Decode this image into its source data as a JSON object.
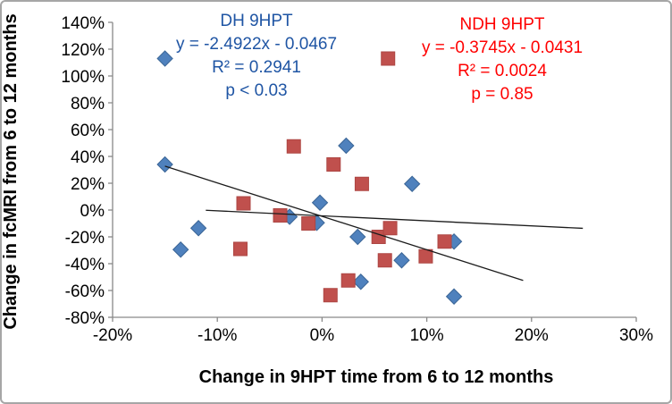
{
  "chart_data": {
    "type": "scatter",
    "title": "",
    "xlabel": "Change in 9HPT time from 6 to 12 months",
    "ylabel": "Change in fcMRI from 6 to 12 months",
    "xlim": [
      -20,
      30
    ],
    "ylim": [
      -80,
      140
    ],
    "grid": false,
    "legend_position": "inline-text-annotations",
    "x_ticks": [
      -20,
      -10,
      0,
      10,
      20,
      30
    ],
    "x_tick_labels": [
      "-20%",
      "-10%",
      "0%",
      "10%",
      "20%",
      "30%"
    ],
    "y_ticks": [
      -80,
      -60,
      -40,
      -20,
      0,
      20,
      40,
      60,
      80,
      100,
      120,
      140
    ],
    "y_tick_labels": [
      "-80%",
      "-60%",
      "-40%",
      "-20%",
      "0%",
      "20%",
      "40%",
      "60%",
      "80%",
      "100%",
      "120%",
      "140%"
    ],
    "series": [
      {
        "name": "DH 9HPT",
        "marker": "diamond",
        "color": "#4F81BD",
        "edge_color": "#3A6596",
        "points_pct": [
          [
            -15,
            113
          ],
          [
            -15,
            34
          ],
          [
            -13.5,
            -29.5
          ],
          [
            -11.8,
            -13.5
          ],
          [
            -3.1,
            -5
          ],
          [
            -0.5,
            -9.5
          ],
          [
            -0.2,
            5.5
          ],
          [
            2.3,
            48
          ],
          [
            8.6,
            19.5
          ],
          [
            3.4,
            -20
          ],
          [
            7.6,
            -37.5
          ],
          [
            12.6,
            -23.5
          ],
          [
            3.7,
            -53.5
          ],
          [
            12.6,
            -64.5
          ]
        ]
      },
      {
        "name": "NDH 9HPT",
        "marker": "square",
        "color": "#C0504D",
        "edge_color": "#AD4643",
        "points_pct": [
          [
            6.3,
            113
          ],
          [
            -2.7,
            47.5
          ],
          [
            1.1,
            34
          ],
          [
            -7.5,
            5
          ],
          [
            -4,
            -4
          ],
          [
            -1.3,
            -10
          ],
          [
            3.8,
            19.5
          ],
          [
            -7.8,
            -29
          ],
          [
            5.4,
            -20
          ],
          [
            6.5,
            -13.5
          ],
          [
            6,
            -37.5
          ],
          [
            9.9,
            -34.5
          ],
          [
            11.7,
            -23.5
          ],
          [
            2.5,
            -52.5
          ],
          [
            0.8,
            -63.5
          ]
        ]
      }
    ],
    "trendlines": [
      {
        "series": "DH 9HPT",
        "slope": -2.4922,
        "intercept": -0.0467,
        "x_range_pct": [
          -15,
          19.2
        ],
        "color": "#1c1c1c"
      },
      {
        "series": "NDH 9HPT",
        "slope": -0.3745,
        "intercept": -0.0431,
        "x_range_pct": [
          -11.1,
          24.9
        ],
        "color": "#1c1c1c"
      }
    ],
    "axis_color": "#898989"
  },
  "annotations": {
    "dh": {
      "title": "DH 9HPT",
      "equation": "y = -2.4922x - 0.0467",
      "r_squared": "R² = 0.2941",
      "p_value": "p < 0.03",
      "color": "#1F55A4"
    },
    "ndh": {
      "title": "NDH 9HPT",
      "equation": "y = -0.3745x - 0.0431",
      "r_squared": "R² = 0.0024",
      "p_value": "p = 0.85",
      "color": "#FF0000"
    }
  }
}
